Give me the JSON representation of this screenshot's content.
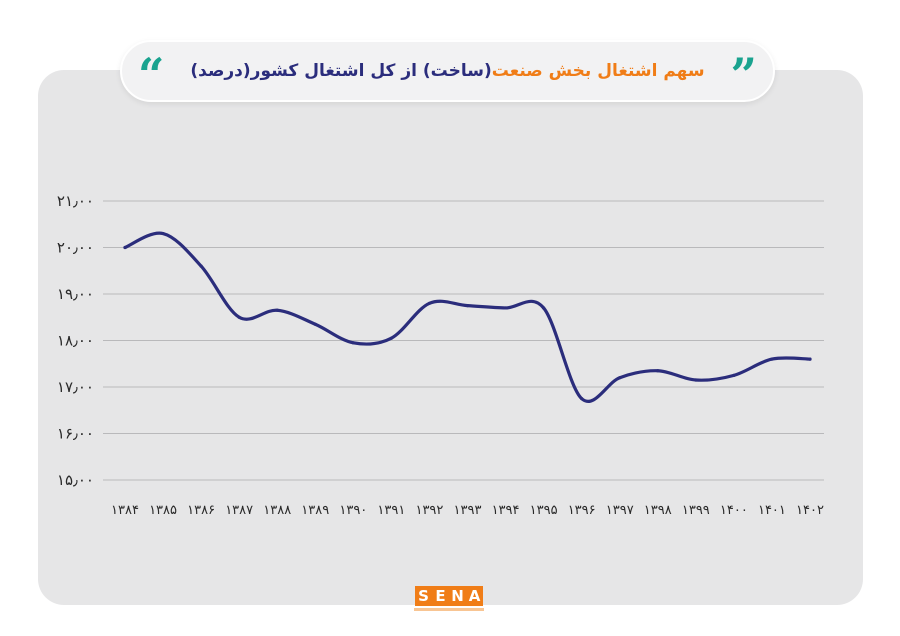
{
  "title": {
    "part1": "سهم اشتغال بخش صنعت",
    "part2": "(ساخت) از کل اشتغال کشور(درصد)",
    "color1": "#f07d17",
    "color2": "#2b2d7c",
    "quote_open": "”",
    "quote_close": "“",
    "quote_left_color": "#1aa38f",
    "quote_right_color": "#1aa38f"
  },
  "logo": {
    "letters": [
      "S",
      "E",
      "N",
      "A"
    ],
    "color": "#f07d17"
  },
  "chart_data": {
    "type": "line",
    "x": [
      "۱۳۸۴",
      "۱۳۸۵",
      "۱۳۸۶",
      "۱۳۸۷",
      "۱۳۸۸",
      "۱۳۸۹",
      "۱۳۹۰",
      "۱۳۹۱",
      "۱۳۹۲",
      "۱۳۹۳",
      "۱۳۹۴",
      "۱۳۹۵",
      "۱۳۹۶",
      "۱۳۹۷",
      "۱۳۹۸",
      "۱۳۹۹",
      "۱۴۰۰",
      "۱۴۰۱",
      "۱۴۰۲"
    ],
    "y": [
      20.0,
      20.3,
      19.6,
      18.5,
      18.65,
      18.35,
      17.95,
      18.05,
      18.8,
      18.75,
      18.7,
      18.7,
      16.75,
      17.2,
      17.35,
      17.15,
      17.25,
      17.6,
      17.6
    ],
    "ylim": [
      15,
      21
    ],
    "yticks": [
      15,
      16,
      17,
      18,
      19,
      20,
      21
    ],
    "yticklabels": [
      "۱۵٫۰۰",
      "۱۶٫۰۰",
      "۱۷٫۰۰",
      "۱۸٫۰۰",
      "۱۹٫۰۰",
      "۲۰٫۰۰",
      "۲۱٫۰۰"
    ],
    "grid": true,
    "line_color": "#2b2d7c",
    "grid_color": "#b9b9bb"
  }
}
